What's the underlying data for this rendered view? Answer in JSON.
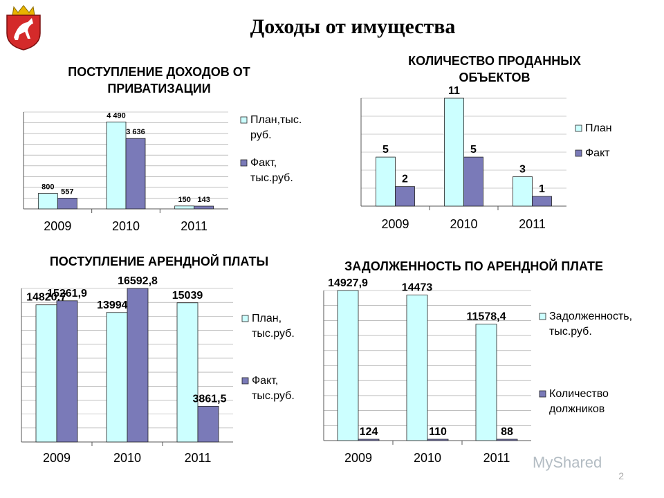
{
  "page": {
    "title": "Доходы от имущества",
    "slide_number": "2",
    "watermark": "MyShared"
  },
  "colors": {
    "plan": "#ccffff",
    "fact": "#7a7ab8",
    "border": "#000000",
    "grid": "#999999"
  },
  "chart_data": [
    {
      "type": "bar",
      "title": "ПОСТУПЛЕНИЕ ДОХОДОВ ОТ ПРИВАТИЗАЦИИ",
      "categories": [
        "2009",
        "2010",
        "2011"
      ],
      "series": [
        {
          "name": "План,тыс. руб.",
          "values": [
            800,
            4490,
            150
          ],
          "labels": [
            "800",
            "4 490",
            "150"
          ]
        },
        {
          "name": "Факт, тыс.руб.",
          "values": [
            557,
            3636,
            143
          ],
          "labels": [
            "557",
            "3 636",
            "143"
          ]
        }
      ],
      "ylim": [
        0,
        5000
      ],
      "grid": true,
      "legend": "right"
    },
    {
      "type": "bar",
      "title": "КОЛИЧЕСТВО ПРОДАННЫХ ОБЪЕКТОВ",
      "categories": [
        "2009",
        "2010",
        "2011"
      ],
      "series": [
        {
          "name": "План",
          "values": [
            5,
            11,
            3
          ],
          "labels": [
            "5",
            "11",
            "3"
          ]
        },
        {
          "name": "Факт",
          "values": [
            2,
            5,
            1
          ],
          "labels": [
            "2",
            "5",
            "1"
          ]
        }
      ],
      "ylim": [
        0,
        11
      ],
      "grid": true,
      "legend": "right"
    },
    {
      "type": "bar",
      "title": "ПОСТУПЛЕНИЕ АРЕНДНОЙ ПЛАТЫ",
      "categories": [
        "2009",
        "2010",
        "2011"
      ],
      "series": [
        {
          "name": "План, тыс.руб.",
          "values": [
            14820.7,
            13994.2,
            15039
          ],
          "labels": [
            "14820,7",
            "13994,2",
            "15039"
          ]
        },
        {
          "name": "Факт, тыс.руб.",
          "values": [
            15261.9,
            16592.8,
            3861.5
          ],
          "labels": [
            "15261,9",
            "16592,8",
            "3861,5"
          ]
        }
      ],
      "ylim": [
        0,
        16592.8
      ],
      "grid": true,
      "legend": "right"
    },
    {
      "type": "bar",
      "title": "ЗАДОЛЖЕННОСТЬ ПО АРЕНДНОЙ ПЛАТЕ",
      "categories": [
        "2009",
        "2010",
        "2011"
      ],
      "series": [
        {
          "name": "Задолженность, тыс.руб.",
          "values": [
            14927.9,
            14473,
            11578.4
          ],
          "labels": [
            "14927,9",
            "14473",
            "11578,4"
          ]
        },
        {
          "name": "Количество должников",
          "values": [
            124,
            110,
            88
          ],
          "labels": [
            "124",
            "110",
            "88"
          ]
        }
      ],
      "ylim": [
        0,
        14927.9
      ],
      "grid": true,
      "legend": "right"
    }
  ]
}
